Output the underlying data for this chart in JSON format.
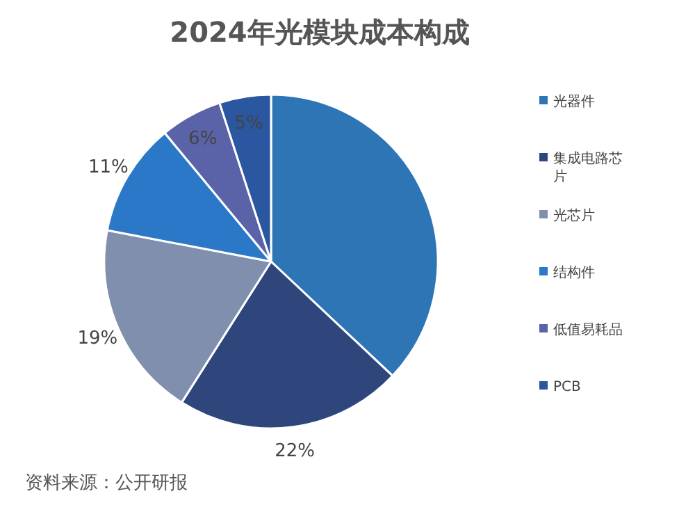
{
  "chart_data": {
    "type": "pie",
    "title": "2024年光模块成本构成",
    "categories": [
      "光器件",
      "集成电路芯片",
      "光芯片",
      "结构件",
      "低值易耗品",
      "PCB"
    ],
    "values": [
      37,
      22,
      19,
      11,
      6,
      5
    ],
    "value_labels": [
      null,
      "22%",
      "19%",
      "11%",
      "6%",
      "5%"
    ],
    "colors": [
      "#2e75b6",
      "#2f467c",
      "#7f8fad",
      "#2c78c8",
      "#5a62a8",
      "#2a57a0"
    ],
    "legend": "right",
    "annotations": [
      "资料来源：公开研报"
    ]
  }
}
